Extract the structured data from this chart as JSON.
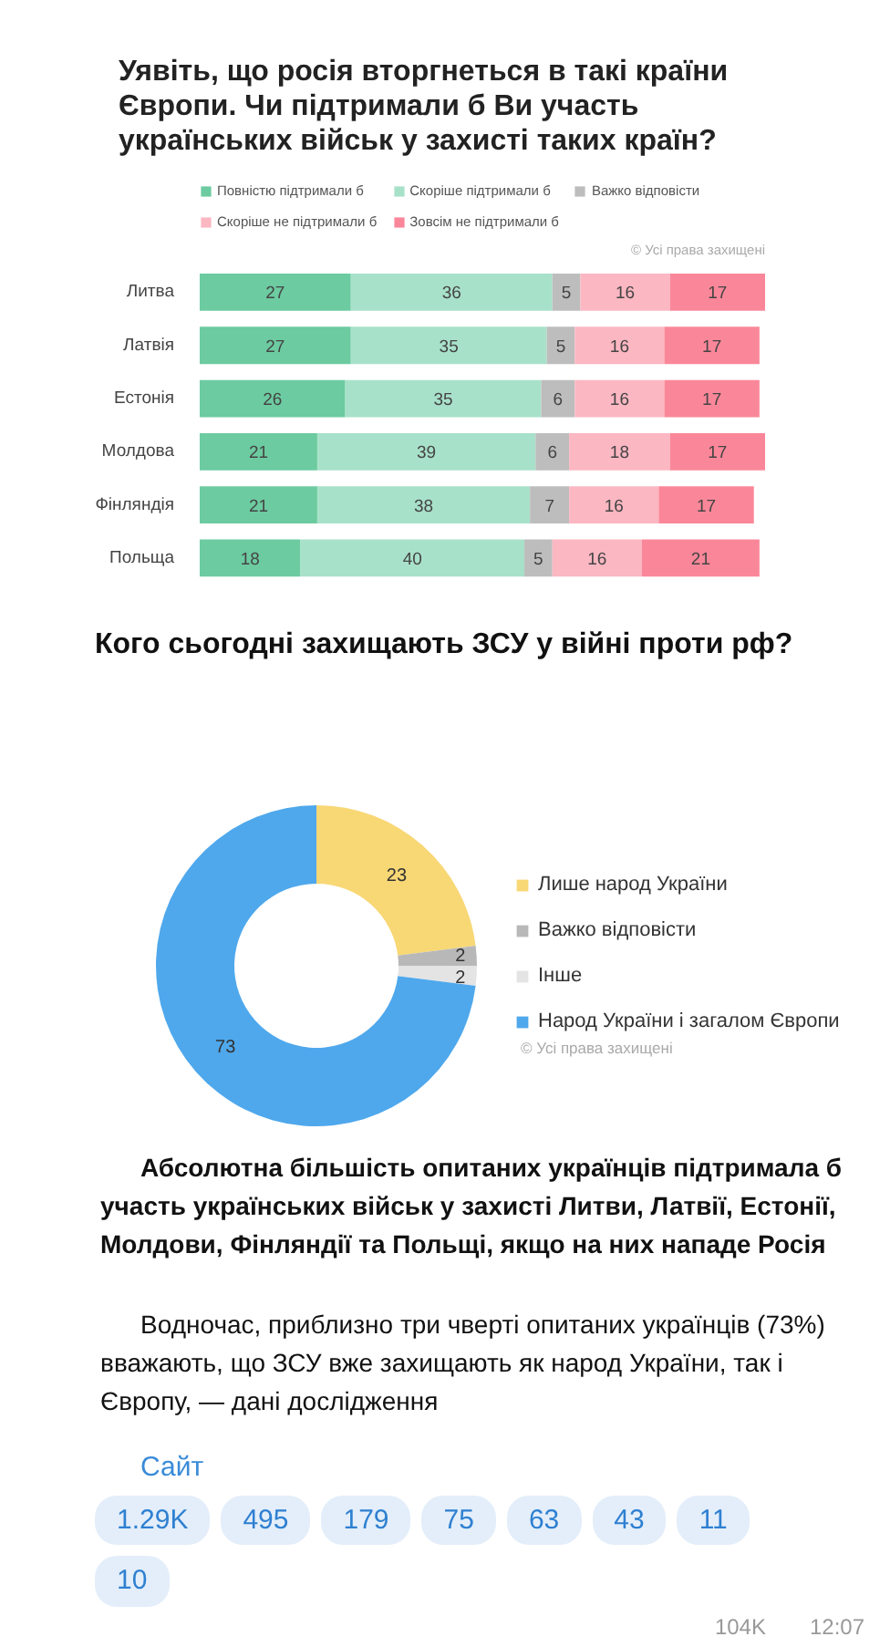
{
  "chart_data": [
    {
      "type": "bar",
      "title": "Уявіть, що росія вторгнеться в такі країни Європи. Чи підтримали б Ви участь українських військ у захисті таких країн?",
      "categories": [
        "Литва",
        "Латвія",
        "Естонія",
        "Молдова",
        "Фінляндія",
        "Польща"
      ],
      "orientation": "horizontal",
      "stacked": true,
      "series": [
        {
          "name": "Повністю підтримали б",
          "color": "#6ccba0",
          "values": [
            27,
            27,
            26,
            21,
            21,
            18
          ]
        },
        {
          "name": "Скоріше підтримали б",
          "color": "#a8e1c9",
          "values": [
            36,
            35,
            35,
            39,
            38,
            40
          ]
        },
        {
          "name": "Важко відповісти",
          "color": "#bdbdbd",
          "values": [
            5,
            5,
            6,
            6,
            7,
            5
          ]
        },
        {
          "name": "Скоріше не підтримали б",
          "color": "#fbb7c2",
          "values": [
            16,
            16,
            16,
            18,
            16,
            16
          ]
        },
        {
          "name": "Зовсім не підтримали б",
          "color": "#fa8799",
          "values": [
            17,
            17,
            17,
            17,
            17,
            21
          ]
        }
      ],
      "data_labels": true,
      "legend": "top",
      "annotations": [
        "© Усі права захищені"
      ]
    },
    {
      "type": "donut",
      "title": "Кого сьогодні захищають ЗСУ у війні проти рф?",
      "categories": [
        "Лише народ України",
        "Важко відповісти",
        "Інше",
        "Народ України і загалом Європи"
      ],
      "values": [
        23,
        2,
        2,
        73
      ],
      "colors": [
        "#f8d775",
        "#b8b8b8",
        "#e4e4e4",
        "#4fa8ec"
      ],
      "data_labels": true,
      "legend": "right",
      "annotations": [
        "© Усі права захищені",
        "Абсолютна більшість опитаних українців підтримала б участь українських військ у захисті Литви, Латвії, Естонії, Молдови, Фінляндії та Польщі, якщо на них нападе Росія",
        "Водночас, приблизно три чверті опитаних українців (73%) вважають, що ЗСУ вже захищають як народ України, так і Європу, — дані дослідження",
        "Сайт",
        "1.29K",
        "495",
        "179",
        "75",
        "63",
        "43",
        "11",
        "10",
        "104K",
        "12:07"
      ]
    }
  ]
}
